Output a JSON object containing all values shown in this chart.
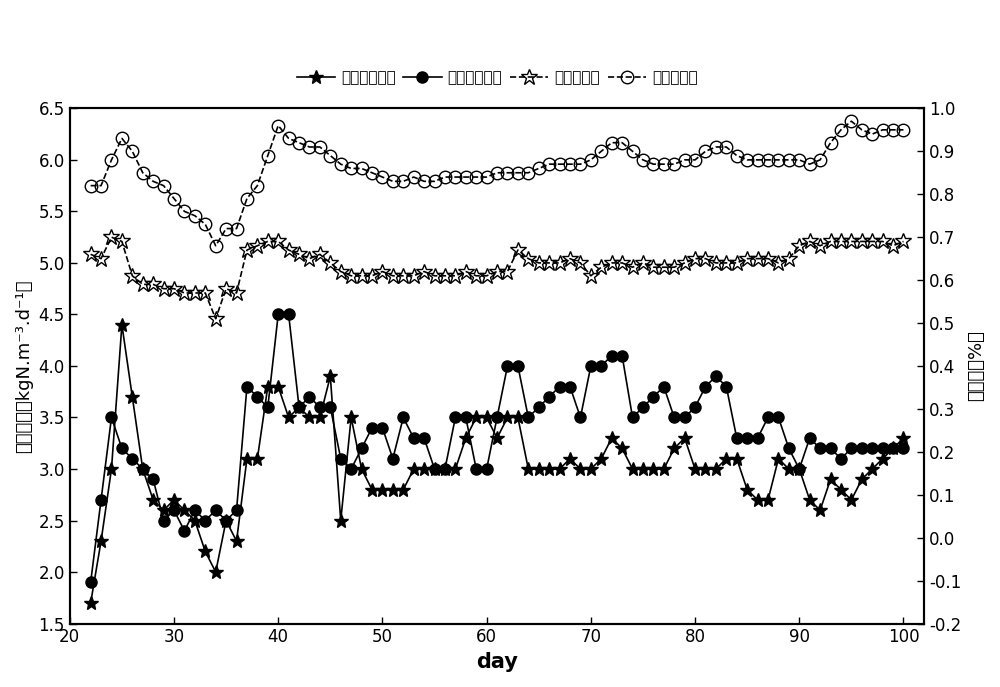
{
  "title": "",
  "xlabel": "day",
  "ylabel_left": "去除负荷（kgN.m⁻³.d⁻¹）",
  "ylabel_right": "去除率（%）",
  "xlim": [
    20,
    102
  ],
  "ylim_left": [
    1.5,
    6.5
  ],
  "ylim_right": [
    -0.2,
    1.0
  ],
  "xticks": [
    20,
    30,
    40,
    50,
    60,
    70,
    80,
    90,
    100
  ],
  "yticks_left": [
    1.5,
    2.0,
    2.5,
    3.0,
    3.5,
    4.0,
    4.5,
    5.0,
    5.5,
    6.0,
    6.5
  ],
  "yticks_right": [
    -0.2,
    -0.1,
    0.0,
    0.1,
    0.2,
    0.3,
    0.4,
    0.5,
    0.6,
    0.7,
    0.8,
    0.9,
    1.0
  ],
  "legend_labels": [
    "总氮去除负荷",
    "氨氮去除负荷",
    "总氮去除率",
    "氨氮去除率"
  ],
  "series1_x": [
    22,
    23,
    24,
    25,
    26,
    27,
    28,
    29,
    30,
    31,
    32,
    33,
    34,
    35,
    36,
    37,
    38,
    39,
    40,
    41,
    42,
    43,
    44,
    45,
    46,
    47,
    48,
    49,
    50,
    51,
    52,
    53,
    54,
    55,
    56,
    57,
    58,
    59,
    60,
    61,
    62,
    63,
    64,
    65,
    66,
    67,
    68,
    69,
    70,
    71,
    72,
    73,
    74,
    75,
    76,
    77,
    78,
    79,
    80,
    81,
    82,
    83,
    84,
    85,
    86,
    87,
    88,
    89,
    90,
    91,
    92,
    93,
    94,
    95,
    96,
    97,
    98,
    99,
    100
  ],
  "series1_y": [
    1.7,
    2.3,
    3.0,
    4.4,
    3.7,
    3.0,
    2.7,
    2.6,
    2.7,
    2.6,
    2.5,
    2.2,
    2.0,
    2.5,
    2.3,
    3.1,
    3.1,
    3.8,
    3.8,
    3.5,
    3.6,
    3.5,
    3.5,
    3.9,
    2.5,
    3.5,
    3.0,
    2.8,
    2.8,
    2.8,
    2.8,
    3.0,
    3.0,
    3.0,
    3.0,
    3.0,
    3.3,
    3.5,
    3.5,
    3.3,
    3.5,
    3.5,
    3.0,
    3.0,
    3.0,
    3.0,
    3.1,
    3.0,
    3.0,
    3.1,
    3.3,
    3.2,
    3.0,
    3.0,
    3.0,
    3.0,
    3.2,
    3.3,
    3.0,
    3.0,
    3.0,
    3.1,
    3.1,
    2.8,
    2.7,
    2.7,
    3.1,
    3.0,
    3.0,
    2.7,
    2.6,
    2.9,
    2.8,
    2.7,
    2.9,
    3.0,
    3.1,
    3.2,
    3.3
  ],
  "series2_x": [
    22,
    23,
    24,
    25,
    26,
    27,
    28,
    29,
    30,
    31,
    32,
    33,
    34,
    35,
    36,
    37,
    38,
    39,
    40,
    41,
    42,
    43,
    44,
    45,
    46,
    47,
    48,
    49,
    50,
    51,
    52,
    53,
    54,
    55,
    56,
    57,
    58,
    59,
    60,
    61,
    62,
    63,
    64,
    65,
    66,
    67,
    68,
    69,
    70,
    71,
    72,
    73,
    74,
    75,
    76,
    77,
    78,
    79,
    80,
    81,
    82,
    83,
    84,
    85,
    86,
    87,
    88,
    89,
    90,
    91,
    92,
    93,
    94,
    95,
    96,
    97,
    98,
    99,
    100
  ],
  "series2_y": [
    1.9,
    2.7,
    3.5,
    3.2,
    3.1,
    3.0,
    2.9,
    2.5,
    2.6,
    2.4,
    2.6,
    2.5,
    2.6,
    2.5,
    2.6,
    3.8,
    3.7,
    3.6,
    4.5,
    4.5,
    3.6,
    3.7,
    3.6,
    3.6,
    3.1,
    3.0,
    3.2,
    3.4,
    3.4,
    3.1,
    3.5,
    3.3,
    3.3,
    3.0,
    3.0,
    3.5,
    3.5,
    3.0,
    3.0,
    3.5,
    4.0,
    4.0,
    3.5,
    3.6,
    3.7,
    3.8,
    3.8,
    3.5,
    4.0,
    4.0,
    4.1,
    4.1,
    3.5,
    3.6,
    3.7,
    3.8,
    3.5,
    3.5,
    3.6,
    3.8,
    3.9,
    3.8,
    3.3,
    3.3,
    3.3,
    3.5,
    3.5,
    3.2,
    3.0,
    3.3,
    3.2,
    3.2,
    3.1,
    3.2,
    3.2,
    3.2,
    3.2,
    3.2,
    3.2
  ],
  "series3_x": [
    22,
    23,
    24,
    25,
    26,
    27,
    28,
    29,
    30,
    31,
    32,
    33,
    34,
    35,
    36,
    37,
    38,
    39,
    40,
    41,
    42,
    43,
    44,
    45,
    46,
    47,
    48,
    49,
    50,
    51,
    52,
    53,
    54,
    55,
    56,
    57,
    58,
    59,
    60,
    61,
    62,
    63,
    64,
    65,
    66,
    67,
    68,
    69,
    70,
    71,
    72,
    73,
    74,
    75,
    76,
    77,
    78,
    79,
    80,
    81,
    82,
    83,
    84,
    85,
    86,
    87,
    88,
    89,
    90,
    91,
    92,
    93,
    94,
    95,
    96,
    97,
    98,
    99,
    100
  ],
  "series3_y": [
    0.66,
    0.65,
    0.7,
    0.69,
    0.61,
    0.59,
    0.59,
    0.58,
    0.58,
    0.57,
    0.57,
    0.57,
    0.51,
    0.58,
    0.57,
    0.67,
    0.68,
    0.69,
    0.69,
    0.67,
    0.66,
    0.65,
    0.66,
    0.64,
    0.62,
    0.61,
    0.61,
    0.61,
    0.62,
    0.61,
    0.61,
    0.61,
    0.62,
    0.61,
    0.61,
    0.61,
    0.62,
    0.61,
    0.61,
    0.62,
    0.62,
    0.67,
    0.65,
    0.64,
    0.64,
    0.64,
    0.65,
    0.64,
    0.61,
    0.63,
    0.64,
    0.64,
    0.63,
    0.64,
    0.63,
    0.63,
    0.63,
    0.64,
    0.65,
    0.65,
    0.64,
    0.64,
    0.64,
    0.65,
    0.65,
    0.65,
    0.64,
    0.65,
    0.68,
    0.69,
    0.68,
    0.69,
    0.69,
    0.69,
    0.69,
    0.69,
    0.69,
    0.68,
    0.69
  ],
  "series4_x": [
    22,
    23,
    24,
    25,
    26,
    27,
    28,
    29,
    30,
    31,
    32,
    33,
    34,
    35,
    36,
    37,
    38,
    39,
    40,
    41,
    42,
    43,
    44,
    45,
    46,
    47,
    48,
    49,
    50,
    51,
    52,
    53,
    54,
    55,
    56,
    57,
    58,
    59,
    60,
    61,
    62,
    63,
    64,
    65,
    66,
    67,
    68,
    69,
    70,
    71,
    72,
    73,
    74,
    75,
    76,
    77,
    78,
    79,
    80,
    81,
    82,
    83,
    84,
    85,
    86,
    87,
    88,
    89,
    90,
    91,
    92,
    93,
    94,
    95,
    96,
    97,
    98,
    99,
    100
  ],
  "series4_y": [
    0.82,
    0.82,
    0.88,
    0.93,
    0.9,
    0.85,
    0.83,
    0.82,
    0.79,
    0.76,
    0.75,
    0.73,
    0.68,
    0.72,
    0.72,
    0.79,
    0.82,
    0.89,
    0.96,
    0.93,
    0.92,
    0.91,
    0.91,
    0.89,
    0.87,
    0.86,
    0.86,
    0.85,
    0.84,
    0.83,
    0.83,
    0.84,
    0.83,
    0.83,
    0.84,
    0.84,
    0.84,
    0.84,
    0.84,
    0.85,
    0.85,
    0.85,
    0.85,
    0.86,
    0.87,
    0.87,
    0.87,
    0.87,
    0.88,
    0.9,
    0.92,
    0.92,
    0.9,
    0.88,
    0.87,
    0.87,
    0.87,
    0.88,
    0.88,
    0.9,
    0.91,
    0.91,
    0.89,
    0.88,
    0.88,
    0.88,
    0.88,
    0.88,
    0.88,
    0.87,
    0.88,
    0.92,
    0.95,
    0.97,
    0.95,
    0.94,
    0.95,
    0.95,
    0.95
  ],
  "line_color": "#000000",
  "bg_color": "#ffffff",
  "fontsize_ticks": 12,
  "fontsize_labels": 13,
  "fontsize_legend": 11
}
